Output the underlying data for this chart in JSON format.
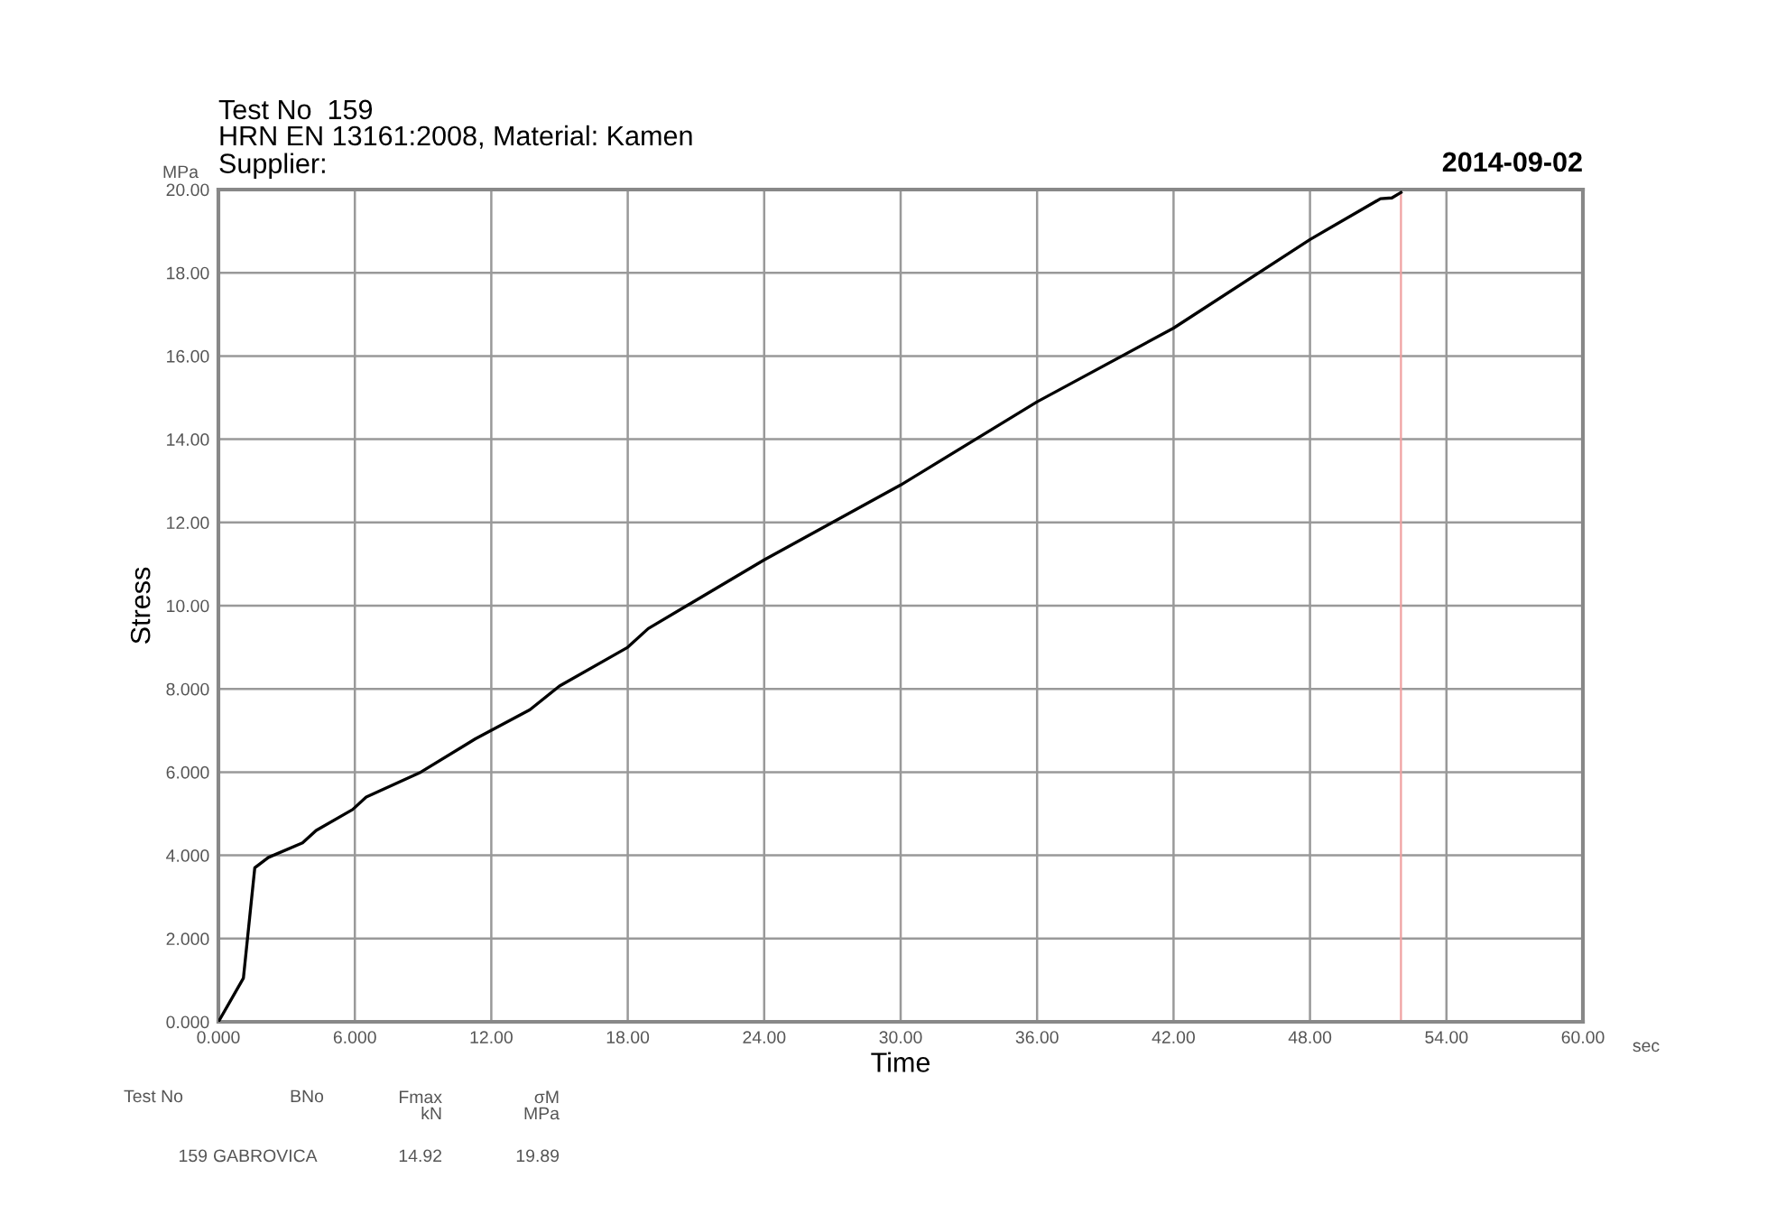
{
  "chart_data": {
    "type": "line",
    "title": "Test No  159",
    "subtitle": "HRN EN 13161:2008, Material: Kamen\nSupplier:",
    "xlabel": "Time",
    "ylabel": "Stress",
    "x": [
      0,
      1.1,
      1.6,
      2.2,
      3.7,
      4.3,
      5.9,
      6.5,
      8.9,
      11.3,
      13.7,
      15.0,
      18.0,
      18.9,
      24.0,
      30.0,
      36.0,
      42.0,
      48.0,
      51.1,
      51.6,
      52.0
    ],
    "series": [
      {
        "color": "#000000",
        "values": [
          0,
          1.05,
          3.7,
          3.95,
          4.3,
          4.6,
          5.1,
          5.4,
          6.0,
          6.8,
          7.5,
          8.07,
          9.0,
          9.45,
          11.1,
          12.9,
          14.9,
          16.67,
          18.8,
          19.78,
          19.8,
          19.93
        ]
      }
    ],
    "xlim": [
      0,
      60
    ],
    "ylim": [
      0,
      20
    ],
    "xticks": [
      {
        "value": 0,
        "label": "0.000"
      },
      {
        "value": 6,
        "label": "6.000"
      },
      {
        "value": 12,
        "label": "12.00"
      },
      {
        "value": 18,
        "label": "18.00"
      },
      {
        "value": 24,
        "label": "24.00"
      },
      {
        "value": 30,
        "label": "30.00"
      },
      {
        "value": 36,
        "label": "36.00"
      },
      {
        "value": 42,
        "label": "42.00"
      },
      {
        "value": 48,
        "label": "48.00"
      },
      {
        "value": 54,
        "label": "54.00"
      },
      {
        "value": 60,
        "label": "60.00"
      }
    ],
    "yticks": [
      {
        "value": 0,
        "label": "0.000"
      },
      {
        "value": 2,
        "label": "2.000"
      },
      {
        "value": 4,
        "label": "4.000"
      },
      {
        "value": 6,
        "label": "6.000"
      },
      {
        "value": 8,
        "label": "8.000"
      },
      {
        "value": 10,
        "label": "10.00"
      },
      {
        "value": 12,
        "label": "12.00"
      },
      {
        "value": 14,
        "label": "14.00"
      },
      {
        "value": 16,
        "label": "16.00"
      },
      {
        "value": 18,
        "label": "18.00"
      },
      {
        "value": 20,
        "label": "20.00"
      }
    ],
    "grid": true,
    "legend": false,
    "marker": "none",
    "line_style": "solid",
    "ref_lines": [
      {
        "axis": "x",
        "value": 52,
        "color": "#f0a0a0"
      }
    ],
    "annotations": [
      "2014-09-02",
      "MPa",
      "sec",
      "Test No",
      "BNo",
      "Fmax\nkN",
      "σM\nMPa",
      "159",
      "GABROVICA",
      "14.92",
      "19.89"
    ]
  }
}
